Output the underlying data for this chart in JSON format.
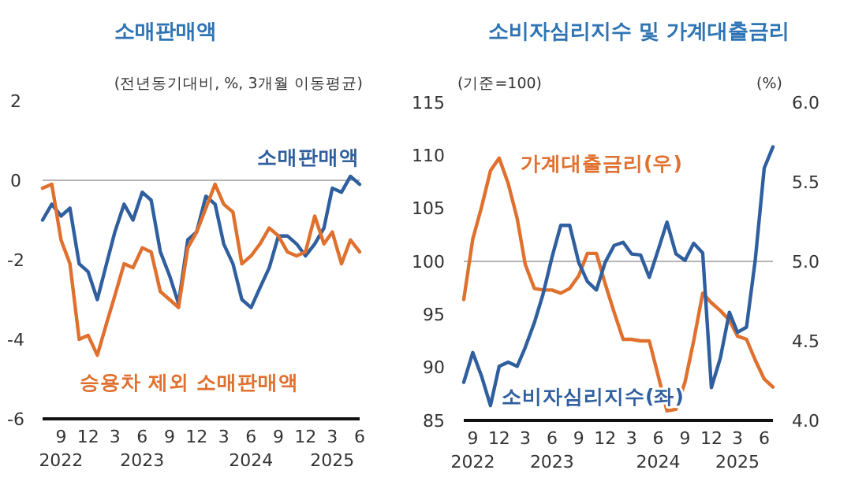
{
  "chart_data": [
    {
      "type": "line",
      "title": "소매판매액",
      "subtitle": "(전년동기대비,  %, 3개월 이동평균)",
      "x": [
        "2022-07",
        "2022-08",
        "2022-09",
        "2022-10",
        "2022-11",
        "2022-12",
        "2023-01",
        "2023-02",
        "2023-03",
        "2023-04",
        "2023-05",
        "2023-06",
        "2023-07",
        "2023-08",
        "2023-09",
        "2023-10",
        "2023-11",
        "2023-12",
        "2024-01",
        "2024-02",
        "2024-03",
        "2024-04",
        "2024-05",
        "2024-06",
        "2024-07",
        "2024-08",
        "2024-09",
        "2024-10",
        "2024-11",
        "2024-12",
        "2025-01",
        "2025-02",
        "2025-03",
        "2025-04",
        "2025-05",
        "2025-06"
      ],
      "series": [
        {
          "name": "소매판매액",
          "color": "#2f5f9e",
          "values": [
            -1.0,
            -0.6,
            -0.9,
            -0.7,
            -2.1,
            -2.3,
            -3.0,
            -2.1,
            -1.3,
            -0.6,
            -1.0,
            -0.3,
            -0.5,
            -1.8,
            -2.4,
            -3.1,
            -1.5,
            -1.3,
            -0.4,
            -0.6,
            -1.6,
            -2.1,
            -3.0,
            -3.2,
            -2.7,
            -2.2,
            -1.4,
            -1.4,
            -1.6,
            -1.9,
            -1.6,
            -1.2,
            -0.2,
            -0.3,
            0.1,
            -0.1
          ]
        },
        {
          "name": "승용차 제외 소매판매액",
          "color": "#e0702e",
          "values": [
            -0.2,
            -0.1,
            -1.5,
            -2.1,
            -4.0,
            -3.9,
            -4.4,
            -3.6,
            -2.9,
            -2.1,
            -2.2,
            -1.7,
            -1.8,
            -2.8,
            -3.0,
            -3.2,
            -1.7,
            -1.3,
            -0.7,
            -0.1,
            -0.6,
            -0.8,
            -2.1,
            -1.9,
            -1.6,
            -1.2,
            -1.4,
            -1.8,
            -1.9,
            -1.8,
            -0.9,
            -1.6,
            -1.3,
            -2.1,
            -1.5,
            -1.8
          ]
        }
      ],
      "xlim": [
        "2022-07",
        "2025-06"
      ],
      "xticks": [
        {
          "value": "2022-09",
          "label": "9\n2022"
        },
        {
          "value": "2022-12",
          "label": "12"
        },
        {
          "value": "2023-03",
          "label": "3"
        },
        {
          "value": "2023-06",
          "label": "6\n2023"
        },
        {
          "value": "2023-09",
          "label": "9"
        },
        {
          "value": "2023-12",
          "label": "12"
        },
        {
          "value": "2024-03",
          "label": "3"
        },
        {
          "value": "2024-06",
          "label": "6\n2024"
        },
        {
          "value": "2024-09",
          "label": "9"
        },
        {
          "value": "2024-12",
          "label": "12"
        },
        {
          "value": "2025-03",
          "label": "3\n2025"
        },
        {
          "value": "2025-06",
          "label": "6"
        }
      ],
      "ylim": [
        -6,
        2
      ],
      "yticks": [
        -6,
        -4,
        -2,
        0,
        2
      ],
      "ref_lines": [
        {
          "axis": "y",
          "value": 0,
          "color": "#b4b4b4"
        }
      ]
    },
    {
      "type": "line",
      "title": "소비자심리지수 및 가계대출금리",
      "ylabel": "(기준=100)",
      "y2label": "(%)",
      "x": [
        "2022-08",
        "2022-09",
        "2022-10",
        "2022-11",
        "2022-12",
        "2023-01",
        "2023-02",
        "2023-03",
        "2023-04",
        "2023-05",
        "2023-06",
        "2023-07",
        "2023-08",
        "2023-09",
        "2023-10",
        "2023-11",
        "2023-12",
        "2024-01",
        "2024-02",
        "2024-03",
        "2024-04",
        "2024-05",
        "2024-06",
        "2024-07",
        "2024-08",
        "2024-09",
        "2024-10",
        "2024-11",
        "2024-12",
        "2025-01",
        "2025-02",
        "2025-03",
        "2025-04",
        "2025-05",
        "2025-06",
        "2025-07"
      ],
      "series": [
        {
          "name": "가계대출금리(우)",
          "color": "#e0702e",
          "axis": "y2",
          "values": [
            4.76,
            5.14,
            5.34,
            5.57,
            5.65,
            5.49,
            5.27,
            4.98,
            4.83,
            4.82,
            4.82,
            4.8,
            4.83,
            4.91,
            5.05,
            5.05,
            4.86,
            4.68,
            4.51,
            4.51,
            4.5,
            4.5,
            4.28,
            4.06,
            4.07,
            4.24,
            4.5,
            4.8,
            4.74,
            4.69,
            4.63,
            4.53,
            4.51,
            4.38,
            4.26,
            4.21
          ]
        },
        {
          "name": "소비자심리지수(좌)",
          "color": "#2f5f9e",
          "values": [
            88.6,
            91.4,
            89.2,
            86.4,
            90.1,
            90.5,
            90.1,
            91.9,
            94.2,
            96.9,
            100.4,
            103.4,
            103.4,
            99.9,
            98.1,
            97.3,
            99.9,
            101.5,
            101.8,
            100.7,
            100.6,
            98.5,
            101.1,
            103.7,
            100.7,
            100.1,
            101.7,
            100.8,
            88.1,
            90.9,
            95.2,
            93.3,
            93.8,
            100.1,
            108.8,
            110.8
          ]
        }
      ],
      "xlim": [
        "2022-08",
        "2025-07"
      ],
      "xticks": [
        {
          "value": "2022-09",
          "label": "9\n2022"
        },
        {
          "value": "2022-12",
          "label": "12"
        },
        {
          "value": "2023-03",
          "label": "3"
        },
        {
          "value": "2023-06",
          "label": "6\n2023"
        },
        {
          "value": "2023-09",
          "label": "9"
        },
        {
          "value": "2023-12",
          "label": "12"
        },
        {
          "value": "2024-03",
          "label": "3"
        },
        {
          "value": "2024-06",
          "label": "6\n2024"
        },
        {
          "value": "2024-09",
          "label": "9"
        },
        {
          "value": "2024-12",
          "label": "12"
        },
        {
          "value": "2025-03",
          "label": "3\n2025"
        },
        {
          "value": "2025-06",
          "label": "6"
        }
      ],
      "ylim": [
        85,
        115
      ],
      "yticks": [
        85,
        90,
        95,
        100,
        105,
        110,
        115
      ],
      "y2lim": [
        4,
        6
      ],
      "y2ticks": [
        {
          "value": 4,
          "label": "4.0"
        },
        {
          "value": 4.5,
          "label": "4.5"
        },
        {
          "value": 5,
          "label": "5.0"
        },
        {
          "value": 5.5,
          "label": "5.5"
        },
        {
          "value": 6,
          "label": "6.0"
        }
      ],
      "ref_lines": [
        {
          "axis": "y",
          "value": 100,
          "color": "#b4b4b4"
        }
      ]
    }
  ]
}
